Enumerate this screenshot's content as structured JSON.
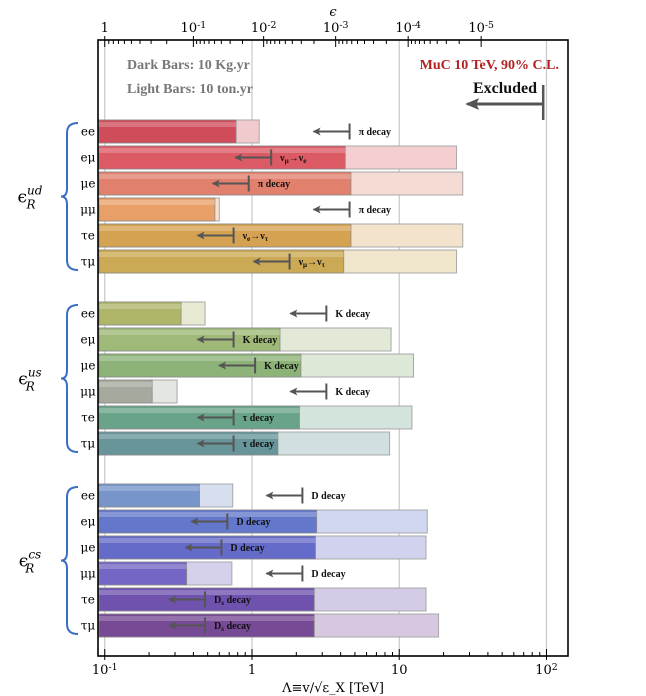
{
  "chart_data": {
    "type": "bar",
    "orientation": "horizontal",
    "x_scale": "log",
    "xlim": [
      0.09,
      140
    ],
    "x_ticks": [
      {
        "value": 0.1,
        "label": "10^-1"
      },
      {
        "value": 1,
        "label": "1"
      },
      {
        "value": 10,
        "label": "10"
      },
      {
        "value": 100,
        "label": "10^2"
      }
    ],
    "top_ticks": [
      {
        "value": 0.1,
        "label": "1"
      },
      {
        "value": 0.4,
        "label": "10^-1"
      },
      {
        "value": 1.2,
        "label": "10^-2"
      },
      {
        "value": 3.7,
        "label": "10^-3"
      },
      {
        "value": 11.5,
        "label": "10^-4"
      },
      {
        "value": 36,
        "label": "10^-5"
      }
    ],
    "xlabel": "Λ≡v/√ε_X [TeV]",
    "top_axis_label": "ϵ",
    "grid_x_values": [
      0.1,
      1,
      10,
      100
    ],
    "annotations": {
      "dark_bars": "Dark Bars: 10 Kg.yr",
      "light_bars": "Light Bars: 10 ton.yr",
      "experiment": "MuC 10 TeV, 90% C.L.",
      "excluded": "Excluded",
      "excluded_arrow_at": 95
    },
    "colors": {
      "ee_rows": "#b9b3b0",
      "experiment_text": "#b22222",
      "group_brace": "#3a6fc4",
      "arrows": "#555555",
      "gridlines": "#c8c8c8"
    },
    "groups": [
      {
        "label_base": "ϵ",
        "label_sup": "ud",
        "label_sub": "R",
        "rows": [
          {
            "label": "ee",
            "dark": 0.78,
            "light": 1.12,
            "color": "#cc4150",
            "bound": 4.6,
            "bound_label": "π decay",
            "label_inside": false
          },
          {
            "label": "eμ",
            "dark": 4.3,
            "light": 24.5,
            "color": "#d8505a",
            "bound": 1.35,
            "bound_label": "ν_μ→ν_e",
            "label_inside": true
          },
          {
            "label": "μe",
            "dark": 4.7,
            "light": 27,
            "color": "#de7a64",
            "bound": 0.95,
            "bound_label": "π decay",
            "label_inside": true
          },
          {
            "label": "μμ",
            "dark": 0.56,
            "light": 0.6,
            "color": "#e69a5e",
            "bound": 4.6,
            "bound_label": "π decay",
            "label_inside": false
          },
          {
            "label": "τe",
            "dark": 4.7,
            "light": 27,
            "color": "#d39c48",
            "bound": 0.75,
            "bound_label": "ν_e→ν_τ",
            "label_inside": true
          },
          {
            "label": "τμ",
            "dark": 4.2,
            "light": 24.5,
            "color": "#c9a44a",
            "bound": 1.8,
            "bound_label": "ν_μ→ν_τ",
            "label_inside": true
          }
        ]
      },
      {
        "label_base": "ϵ",
        "label_sup": "us",
        "label_sub": "R",
        "rows": [
          {
            "label": "ee",
            "dark": 0.33,
            "light": 0.48,
            "color": "#aab060",
            "bound": 3.2,
            "bound_label": "K decay",
            "label_inside": false
          },
          {
            "label": "eμ",
            "dark": 1.55,
            "light": 8.8,
            "color": "#98b470",
            "bound": 0.75,
            "bound_label": "K decay",
            "label_inside": true
          },
          {
            "label": "μe",
            "dark": 2.15,
            "light": 12.5,
            "color": "#86ae70",
            "bound": 1.05,
            "bound_label": "K decay",
            "label_inside": true
          },
          {
            "label": "μμ",
            "dark": 0.21,
            "light": 0.31,
            "color": "#a0a498",
            "bound": 3.2,
            "bound_label": "K decay",
            "label_inside": false
          },
          {
            "label": "τe",
            "dark": 2.1,
            "light": 12.2,
            "color": "#5f9e82",
            "bound": 0.75,
            "bound_label": "τ decay",
            "label_inside": true
          },
          {
            "label": "τμ",
            "dark": 1.5,
            "light": 8.6,
            "color": "#5d8e92",
            "bound": 0.75,
            "bound_label": "τ decay",
            "label_inside": true
          }
        ]
      },
      {
        "label_base": "ϵ",
        "label_sup": "cs",
        "label_sub": "R",
        "rows": [
          {
            "label": "ee",
            "dark": 0.44,
            "light": 0.74,
            "color": "#6f8ec6",
            "bound": 2.2,
            "bound_label": "D decay",
            "label_inside": false
          },
          {
            "label": "eμ",
            "dark": 2.75,
            "light": 15.5,
            "color": "#5a70c8",
            "bound": 0.68,
            "bound_label": "D decay",
            "label_inside": true
          },
          {
            "label": "μe",
            "dark": 2.7,
            "light": 15.2,
            "color": "#5b62c4",
            "bound": 0.62,
            "bound_label": "D decay",
            "label_inside": true
          },
          {
            "label": "μμ",
            "dark": 0.36,
            "light": 0.73,
            "color": "#6a5cc0",
            "bound": 2.2,
            "bound_label": "D decay",
            "label_inside": false
          },
          {
            "label": "τe",
            "dark": 2.65,
            "light": 15.2,
            "color": "#6648a8",
            "bound": 0.48,
            "bound_label": "D_s decay",
            "label_inside": true
          },
          {
            "label": "τμ",
            "dark": 2.65,
            "light": 18.5,
            "color": "#6e3f8e",
            "bound": 0.48,
            "bound_label": "D_s decay",
            "label_inside": true
          }
        ]
      }
    ]
  }
}
